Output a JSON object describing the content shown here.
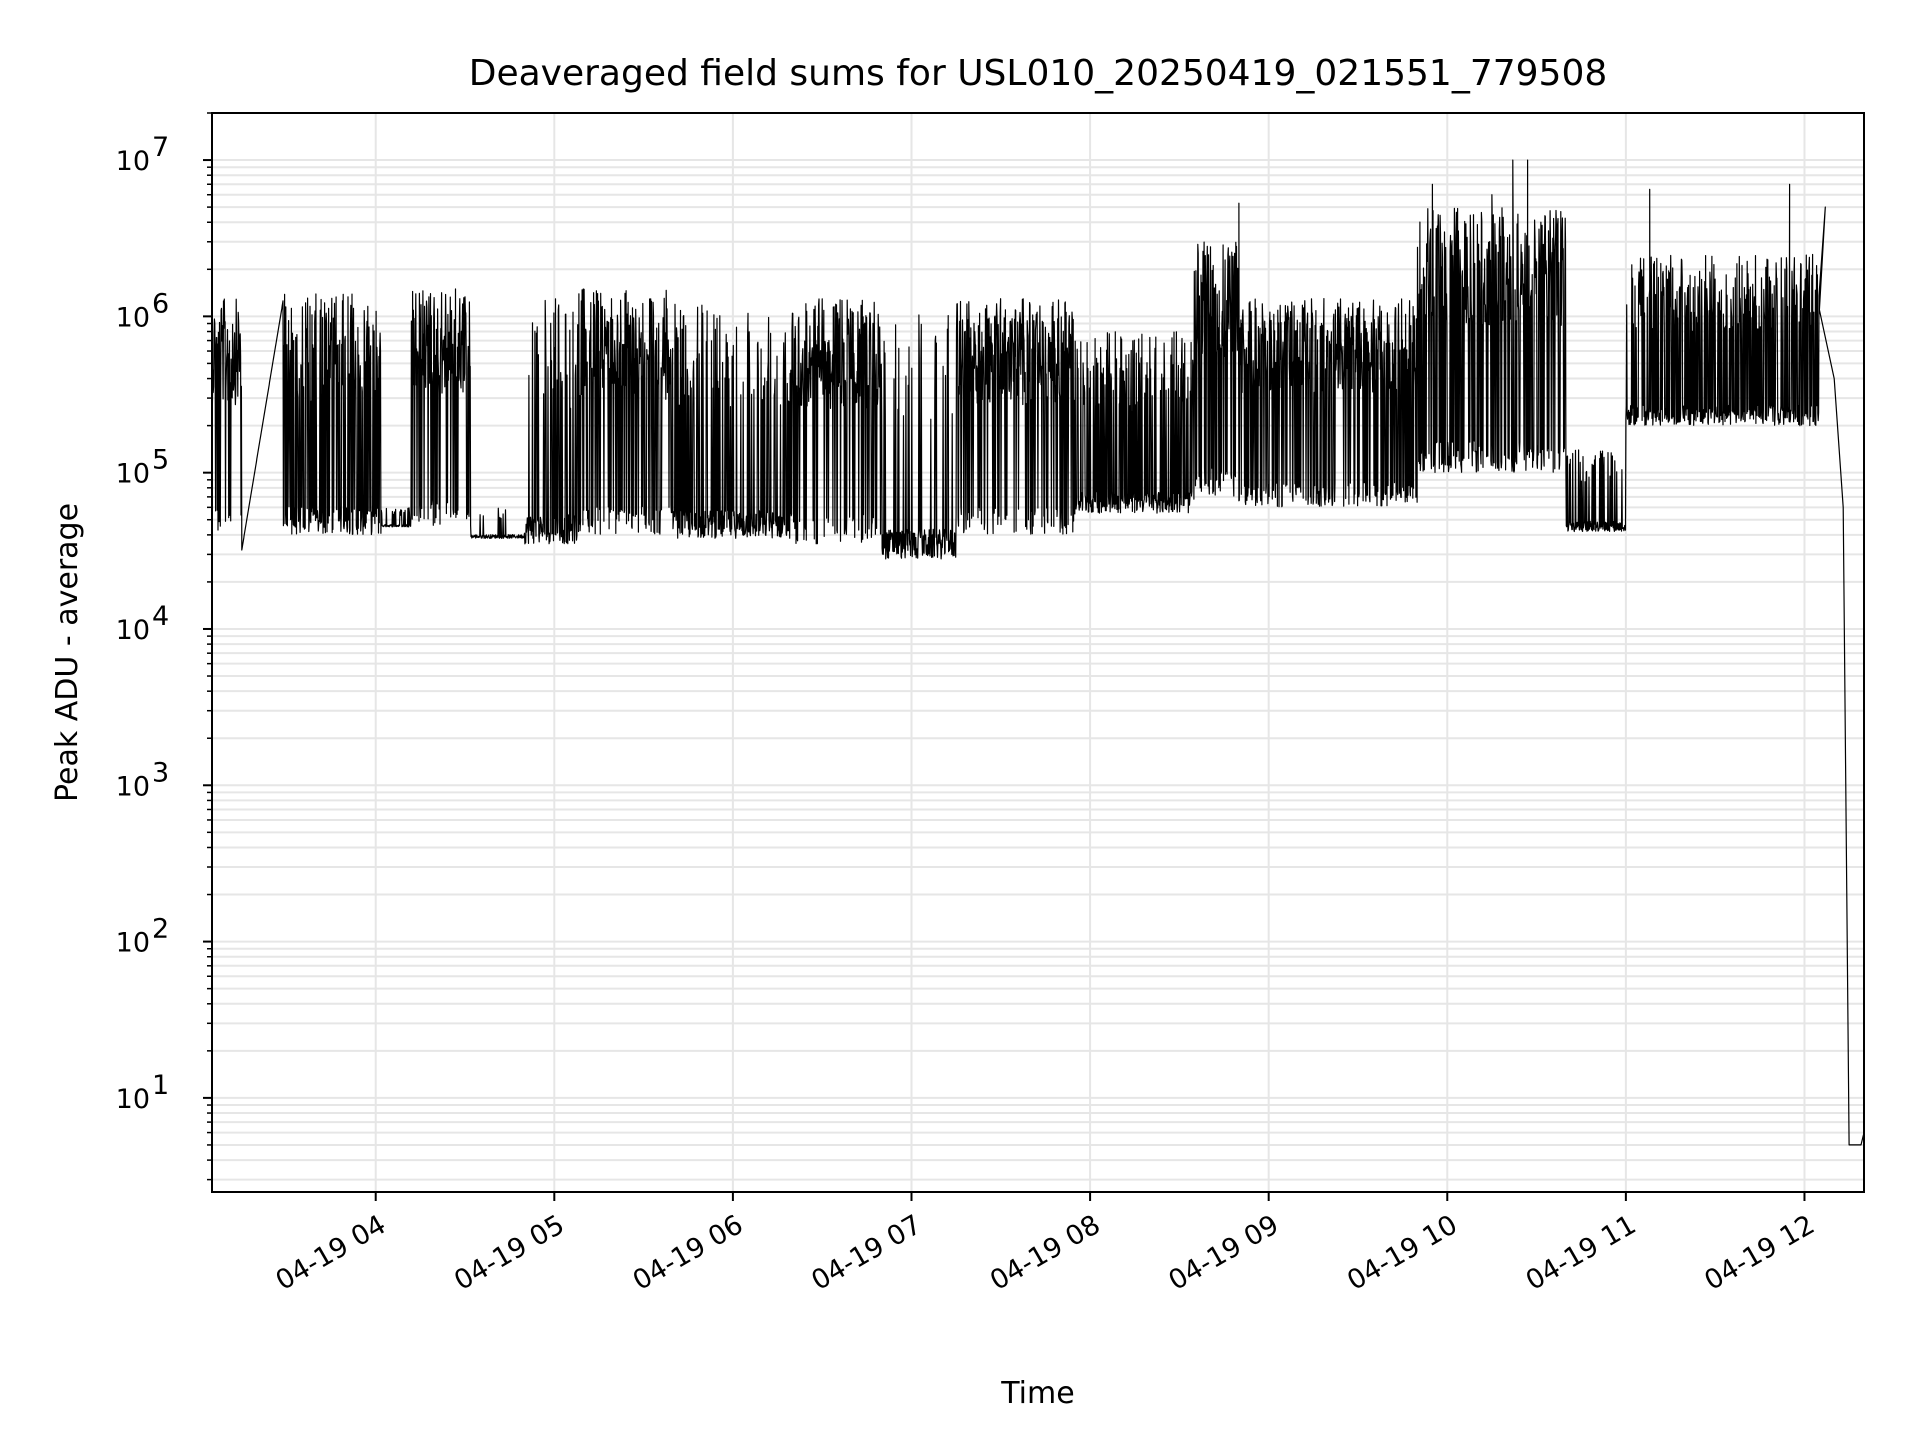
{
  "chart_data": {
    "type": "line",
    "title": "Deaveraged field sums for USL010_20250419_021551_779508",
    "xlabel": "Time",
    "ylabel": "Peak ADU - average",
    "yscale": "log",
    "ylim": [
      2.5,
      20000000
    ],
    "xlim": [
      "2025-04-19 03:05",
      "2025-04-19 12:20"
    ],
    "grid": true,
    "grid_color": "#e6e6e6",
    "line_color": "#000000",
    "x_ticks": [
      {
        "time": "2025-04-19 04:00",
        "label": "04-19 04"
      },
      {
        "time": "2025-04-19 05:00",
        "label": "04-19 05"
      },
      {
        "time": "2025-04-19 06:00",
        "label": "04-19 06"
      },
      {
        "time": "2025-04-19 07:00",
        "label": "04-19 07"
      },
      {
        "time": "2025-04-19 08:00",
        "label": "04-19 08"
      },
      {
        "time": "2025-04-19 09:00",
        "label": "04-19 09"
      },
      {
        "time": "2025-04-19 10:00",
        "label": "04-19 10"
      },
      {
        "time": "2025-04-19 11:00",
        "label": "04-19 11"
      },
      {
        "time": "2025-04-19 12:00",
        "label": "04-19 12"
      }
    ],
    "y_ticks": [
      {
        "value": 10,
        "mantissa": "10",
        "exponent": "1"
      },
      {
        "value": 100,
        "mantissa": "10",
        "exponent": "2"
      },
      {
        "value": 1000,
        "mantissa": "10",
        "exponent": "3"
      },
      {
        "value": 10000,
        "mantissa": "10",
        "exponent": "4"
      },
      {
        "value": 100000,
        "mantissa": "10",
        "exponent": "5"
      },
      {
        "value": 1000000,
        "mantissa": "10",
        "exponent": "6"
      },
      {
        "value": 10000000,
        "mantissa": "10",
        "exponent": "7"
      }
    ],
    "segments": [
      {
        "start": "2025-04-19 03:05",
        "end": "2025-04-19 03:15",
        "low": 40000,
        "high": 1300000,
        "activity": 0.8
      },
      {
        "start": "2025-04-19 03:15",
        "end": "2025-04-19 03:29",
        "low": 32000,
        "high": 1300000,
        "activity": 0.0
      },
      {
        "start": "2025-04-19 03:29",
        "end": "2025-04-19 04:02",
        "low": 40000,
        "high": 1400000,
        "activity": 0.55
      },
      {
        "start": "2025-04-19 04:02",
        "end": "2025-04-19 04:12",
        "low": 45000,
        "high": 60000,
        "activity": 0.15
      },
      {
        "start": "2025-04-19 04:12",
        "end": "2025-04-19 04:32",
        "low": 45000,
        "high": 1500000,
        "activity": 0.75
      },
      {
        "start": "2025-04-19 04:32",
        "end": "2025-04-19 04:50",
        "low": 38000,
        "high": 60000,
        "activity": 0.05
      },
      {
        "start": "2025-04-19 04:50",
        "end": "2025-04-19 05:08",
        "low": 35000,
        "high": 1300000,
        "activity": 0.3
      },
      {
        "start": "2025-04-19 05:08",
        "end": "2025-04-19 05:40",
        "low": 40000,
        "high": 1500000,
        "activity": 0.7
      },
      {
        "start": "2025-04-19 05:40",
        "end": "2025-04-19 06:20",
        "low": 38000,
        "high": 1200000,
        "activity": 0.35
      },
      {
        "start": "2025-04-19 06:20",
        "end": "2025-04-19 06:50",
        "low": 35000,
        "high": 1300000,
        "activity": 0.75
      },
      {
        "start": "2025-04-19 06:50",
        "end": "2025-04-19 07:15",
        "low": 28000,
        "high": 1100000,
        "activity": 0.15
      },
      {
        "start": "2025-04-19 07:15",
        "end": "2025-04-19 07:55",
        "low": 40000,
        "high": 1300000,
        "activity": 0.75
      },
      {
        "start": "2025-04-19 07:55",
        "end": "2025-04-19 08:35",
        "low": 55000,
        "high": 800000,
        "activity": 0.35
      },
      {
        "start": "2025-04-19 08:35",
        "end": "2025-04-19 08:50",
        "low": 70000,
        "high": 3000000,
        "activity": 0.7
      },
      {
        "start": "2025-04-19 08:50",
        "end": "2025-04-19 09:50",
        "low": 60000,
        "high": 1300000,
        "activity": 0.65
      },
      {
        "start": "2025-04-19 09:50",
        "end": "2025-04-19 10:40",
        "low": 100000,
        "high": 5000000,
        "activity": 0.6
      },
      {
        "start": "2025-04-19 10:40",
        "end": "2025-04-19 11:00",
        "low": 42000,
        "high": 150000,
        "activity": 0.2
      },
      {
        "start": "2025-04-19 11:00",
        "end": "2025-04-19 12:05",
        "low": 200000,
        "high": 2500000,
        "activity": 0.45
      }
    ],
    "spikes": [
      {
        "time": "2025-04-19 08:50",
        "value": 5300000
      },
      {
        "time": "2025-04-19 09:55",
        "value": 7000000
      },
      {
        "time": "2025-04-19 10:15",
        "value": 6000000
      },
      {
        "time": "2025-04-19 10:22",
        "value": 10000000
      },
      {
        "time": "2025-04-19 10:27",
        "value": 10000000
      },
      {
        "time": "2025-04-19 11:08",
        "value": 6500000
      },
      {
        "time": "2025-04-19 11:55",
        "value": 7000000
      },
      {
        "time": "2025-04-19 12:07",
        "value": 5000000
      }
    ],
    "tail": [
      {
        "time": "2025-04-19 12:05",
        "value": 1100000
      },
      {
        "time": "2025-04-19 12:10",
        "value": 400000
      },
      {
        "time": "2025-04-19 12:13",
        "value": 60000
      },
      {
        "time": "2025-04-19 12:15",
        "value": 5
      },
      {
        "time": "2025-04-19 12:19",
        "value": 5
      },
      {
        "time": "2025-04-19 12:20",
        "value": 6
      }
    ]
  }
}
